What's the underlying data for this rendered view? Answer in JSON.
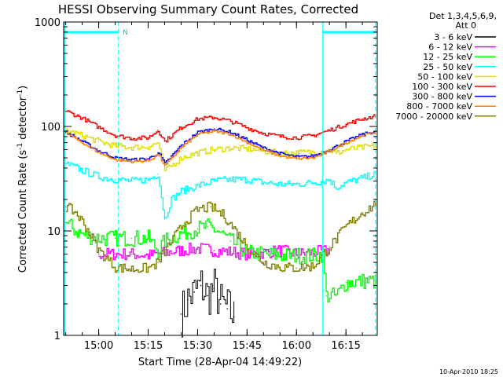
{
  "chart_data": {
    "type": "line",
    "title": "HESSI Observing Summary Count Rates, Corrected",
    "xlabel": "Start Time (28-Apr-04 14:49:22)",
    "ylabel_main": "Corrected Count Rate (s",
    "ylabel_sup1": "-1",
    "ylabel_mid": " detector",
    "ylabel_sup2": "-1",
    "ylabel_end": ")",
    "ylog": true,
    "ylim": [
      1,
      1000
    ],
    "xlim": [
      "14:49:22",
      "16:24:30"
    ],
    "x_ticks": [
      "15:00",
      "15:15",
      "15:30",
      "15:45",
      "16:00",
      "16:15"
    ],
    "y_ticks": [
      "1",
      "10",
      "100",
      "1000"
    ],
    "grid": false,
    "legend_placement": "right",
    "legend_header": [
      "Det 1,3,4,5,6,9,",
      "Att 0"
    ],
    "footer_date": "10-Apr-2010 18:25",
    "night_marker_label": "N",
    "markers": [
      {
        "type": "dashed",
        "time": "15:06:00",
        "color": "#00ffff"
      },
      {
        "type": "solid",
        "time": "16:08:00",
        "color": "#00ffff"
      },
      {
        "type": "dashed",
        "time": "16:24:00",
        "color": "#00ffff"
      }
    ],
    "series": [
      {
        "name": "3 - 6 keV",
        "color": "#000000",
        "t": [
          "15:25",
          "15:27",
          "15:29",
          "15:31",
          "15:33",
          "15:35",
          "15:37",
          "15:39",
          "15:41"
        ],
        "values": [
          1.6,
          2.2,
          2.6,
          3.0,
          2.4,
          2.8,
          2.0,
          1.8,
          1.5
        ]
      },
      {
        "name": "6 - 12 keV",
        "color": "#ff00ff",
        "t": [
          "15:00",
          "15:05",
          "15:10",
          "15:15",
          "15:20",
          "15:25",
          "15:30",
          "15:35",
          "15:40",
          "15:45",
          "15:50",
          "15:55",
          "16:00",
          "16:05",
          "16:10"
        ],
        "values": [
          6.0,
          6.0,
          6.0,
          5.8,
          6.2,
          6.5,
          6.8,
          6.5,
          6.3,
          6.0,
          6.2,
          6.5,
          6.0,
          6.2,
          6.5
        ]
      },
      {
        "name": "12 - 25 keV",
        "color": "#00ff00",
        "t": [
          "14:50",
          "14:53",
          "14:56",
          "15:00",
          "15:05",
          "15:10",
          "15:15",
          "15:18",
          "15:20",
          "15:25",
          "15:30",
          "15:33",
          "15:36",
          "15:40",
          "15:45",
          "15:50",
          "15:55",
          "16:00",
          "16:05",
          "16:08",
          "16:09",
          "16:12",
          "16:15",
          "16:20",
          "16:24"
        ],
        "values": [
          12,
          10,
          9,
          8.5,
          8.5,
          8.5,
          8.5,
          6.5,
          8,
          9.5,
          10.5,
          11,
          10,
          8,
          6.2,
          6.0,
          5.8,
          5.8,
          5.8,
          6.0,
          2.4,
          2.4,
          3.2,
          3.3,
          3.3
        ]
      },
      {
        "name": "25 - 50 keV",
        "color": "#00ffff",
        "t": [
          "14:50",
          "14:55",
          "15:00",
          "15:05",
          "15:10",
          "15:15",
          "15:18",
          "15:20",
          "15:22",
          "15:25",
          "15:30",
          "15:35",
          "15:40",
          "15:45",
          "15:50",
          "15:55",
          "16:00",
          "16:05",
          "16:08",
          "16:10",
          "16:12",
          "16:15",
          "16:20",
          "16:24"
        ],
        "values": [
          44,
          38,
          33,
          31,
          30,
          31,
          35,
          13,
          20,
          24,
          27,
          30,
          31,
          31,
          29,
          28,
          28,
          29,
          30,
          31,
          26,
          29,
          32,
          35
        ]
      },
      {
        "name": "50 - 100 keV",
        "color": "#e0e000",
        "t": [
          "14:50",
          "14:55",
          "15:00",
          "15:05",
          "15:10",
          "15:15",
          "15:18",
          "15:20",
          "15:22",
          "15:25",
          "15:30",
          "15:35",
          "15:40",
          "15:45",
          "15:50",
          "15:55",
          "16:00",
          "16:05",
          "16:10",
          "16:12",
          "16:15",
          "16:20",
          "16:24"
        ],
        "values": [
          92,
          82,
          72,
          65,
          63,
          64,
          70,
          38,
          42,
          50,
          56,
          60,
          62,
          61,
          58,
          56,
          56,
          57,
          59,
          55,
          60,
          63,
          65
        ]
      },
      {
        "name": "100 - 300 keV",
        "color": "#ff0000",
        "t": [
          "14:50",
          "14:55",
          "15:00",
          "15:05",
          "15:10",
          "15:15",
          "15:18",
          "15:20",
          "15:25",
          "15:30",
          "15:35",
          "15:40",
          "15:45",
          "15:50",
          "15:55",
          "16:00",
          "16:05",
          "16:10",
          "16:15",
          "16:20",
          "16:24"
        ],
        "values": [
          140,
          120,
          98,
          82,
          77,
          78,
          92,
          72,
          98,
          118,
          122,
          112,
          97,
          86,
          80,
          78,
          82,
          92,
          105,
          118,
          126
        ]
      },
      {
        "name": "300 - 800 keV",
        "color": "#0000ff",
        "t": [
          "14:50",
          "14:55",
          "15:00",
          "15:05",
          "15:10",
          "15:15",
          "15:18",
          "15:20",
          "15:25",
          "15:30",
          "15:35",
          "15:40",
          "15:45",
          "15:50",
          "15:55",
          "16:00",
          "16:05",
          "16:10",
          "16:15",
          "16:20",
          "16:24"
        ],
        "values": [
          88,
          72,
          58,
          50,
          48,
          49,
          56,
          44,
          66,
          88,
          95,
          88,
          74,
          62,
          55,
          51,
          52,
          60,
          72,
          84,
          90
        ]
      },
      {
        "name": "800 - 7000 keV",
        "color": "#ff8000",
        "t": [
          "14:50",
          "14:55",
          "15:00",
          "15:05",
          "15:10",
          "15:15",
          "15:18",
          "15:20",
          "15:25",
          "15:30",
          "15:35",
          "15:40",
          "15:45",
          "15:50",
          "15:55",
          "16:00",
          "16:05",
          "16:10",
          "16:15",
          "16:20",
          "16:24"
        ],
        "values": [
          86,
          70,
          56,
          48,
          46,
          47,
          54,
          42,
          63,
          84,
          90,
          84,
          70,
          59,
          52,
          49,
          50,
          58,
          70,
          82,
          88
        ]
      },
      {
        "name": "7000 - 20000 keV",
        "color": "#808000",
        "t": [
          "14:50",
          "14:53",
          "14:56",
          "15:00",
          "15:05",
          "15:10",
          "15:15",
          "15:18",
          "15:22",
          "15:26",
          "15:30",
          "15:34",
          "15:38",
          "15:42",
          "15:46",
          "15:50",
          "15:55",
          "16:00",
          "16:05",
          "16:10",
          "16:15",
          "16:20",
          "16:24"
        ],
        "values": [
          17,
          15,
          11,
          6.5,
          4.5,
          4.3,
          4.4,
          5.0,
          8.0,
          12,
          16,
          17,
          14,
          9.5,
          6.5,
          5.0,
          4.5,
          4.4,
          4.6,
          7.0,
          11,
          15,
          18
        ]
      }
    ]
  }
}
